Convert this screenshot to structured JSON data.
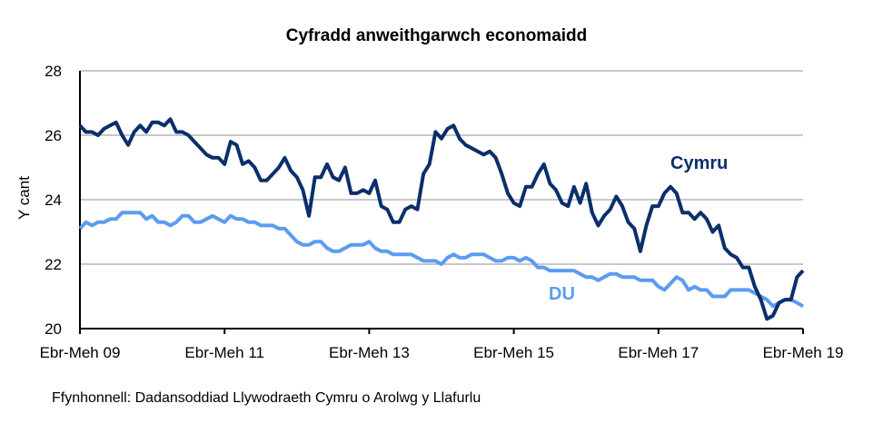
{
  "chart_data": {
    "type": "line",
    "title": "Cyfradd anweithgarwch economaidd",
    "ylabel": "Y cant",
    "xlabel": "",
    "ylim": [
      20,
      28
    ],
    "yticks": [
      20,
      22,
      24,
      26,
      28
    ],
    "xticks": [
      "Ebr-Meh 09",
      "Ebr-Meh 11",
      "Ebr-Meh 13",
      "Ebr-Meh 15",
      "Ebr-Meh 17",
      "Ebr-Meh 19"
    ],
    "grid": "horizontal",
    "source": "Ffynhonnell: Dadansoddiad Llywodraeth Cymru o Arolwg y Llafurlu",
    "series": [
      {
        "name": "Cymru",
        "color": "#0b2f6b",
        "values": [
          26.3,
          26.1,
          26.1,
          26.0,
          26.2,
          26.3,
          26.4,
          26.0,
          25.7,
          26.1,
          26.3,
          26.1,
          26.4,
          26.4,
          26.3,
          26.5,
          26.1,
          26.1,
          26.0,
          25.8,
          25.6,
          25.4,
          25.3,
          25.3,
          25.1,
          25.8,
          25.7,
          25.1,
          25.2,
          25.0,
          24.6,
          24.6,
          24.8,
          25.0,
          25.3,
          24.9,
          24.7,
          24.3,
          23.5,
          24.7,
          24.7,
          25.1,
          24.7,
          24.6,
          25.0,
          24.2,
          24.2,
          24.3,
          24.2,
          24.6,
          23.8,
          23.7,
          23.3,
          23.3,
          23.7,
          23.8,
          23.7,
          24.8,
          25.1,
          26.1,
          25.9,
          26.2,
          26.3,
          25.9,
          25.7,
          25.6,
          25.5,
          25.4,
          25.5,
          25.3,
          24.8,
          24.2,
          23.9,
          23.8,
          24.4,
          24.4,
          24.8,
          25.1,
          24.5,
          24.3,
          23.9,
          23.8,
          24.4,
          23.9,
          24.5,
          23.6,
          23.2,
          23.5,
          23.7,
          24.1,
          23.8,
          23.3,
          23.1,
          22.4,
          23.2,
          23.8,
          23.8,
          24.2,
          24.4,
          24.2,
          23.6,
          23.6,
          23.4,
          23.6,
          23.4,
          23.0,
          23.2,
          22.5,
          22.3,
          22.2,
          21.9,
          21.9,
          21.3,
          20.9,
          20.3,
          20.4,
          20.8,
          20.9,
          20.9,
          21.6,
          21.8
        ]
      },
      {
        "name": "DU",
        "color": "#5b9cf0",
        "values": [
          23.1,
          23.3,
          23.2,
          23.3,
          23.3,
          23.4,
          23.4,
          23.6,
          23.6,
          23.6,
          23.6,
          23.4,
          23.5,
          23.3,
          23.3,
          23.2,
          23.3,
          23.5,
          23.5,
          23.3,
          23.3,
          23.4,
          23.5,
          23.4,
          23.3,
          23.5,
          23.4,
          23.4,
          23.3,
          23.3,
          23.2,
          23.2,
          23.2,
          23.1,
          23.1,
          22.9,
          22.7,
          22.6,
          22.6,
          22.7,
          22.7,
          22.5,
          22.4,
          22.4,
          22.5,
          22.6,
          22.6,
          22.6,
          22.7,
          22.5,
          22.4,
          22.4,
          22.3,
          22.3,
          22.3,
          22.3,
          22.2,
          22.1,
          22.1,
          22.1,
          22.0,
          22.2,
          22.3,
          22.2,
          22.2,
          22.3,
          22.3,
          22.3,
          22.2,
          22.1,
          22.1,
          22.2,
          22.2,
          22.1,
          22.2,
          22.1,
          21.9,
          21.9,
          21.8,
          21.8,
          21.8,
          21.8,
          21.8,
          21.7,
          21.6,
          21.6,
          21.5,
          21.6,
          21.7,
          21.7,
          21.6,
          21.6,
          21.6,
          21.5,
          21.5,
          21.5,
          21.3,
          21.2,
          21.4,
          21.6,
          21.5,
          21.2,
          21.3,
          21.2,
          21.2,
          21.0,
          21.0,
          21.0,
          21.2,
          21.2,
          21.2,
          21.2,
          21.1,
          21.0,
          20.9,
          20.7,
          20.8,
          20.9,
          20.9,
          20.8,
          20.7
        ]
      }
    ]
  }
}
